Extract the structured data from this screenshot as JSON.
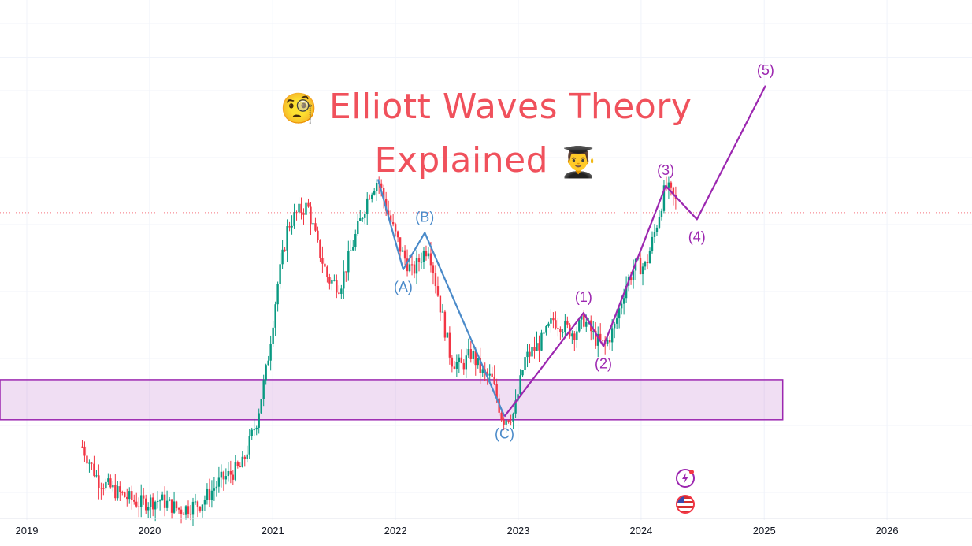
{
  "title": {
    "line1": "Elliott Waves Theory",
    "line2": "Explained",
    "icon1": "monocle-face-icon",
    "icon2": "graduate-icon"
  },
  "colors": {
    "up_candle": "#089981",
    "down_candle": "#f23645",
    "impulse_wave": "#9c27b0",
    "corrective_wave": "#4a8ac9",
    "zone_fill": "rgba(186, 104, 200, 0.22)",
    "zone_border": "#9c27b0",
    "title": "#f0515c",
    "price_line": "#f23645"
  },
  "chart_data": {
    "type": "candlestick",
    "x_axis": {
      "ticks": [
        "2019",
        "2020",
        "2021",
        "2022",
        "2023",
        "2024",
        "2025",
        "2026"
      ]
    },
    "grid": true,
    "series_close": [
      [
        "2019-06-15",
        0.22
      ],
      [
        "2019-08-01",
        0.12
      ],
      [
        "2019-10-01",
        0.08
      ],
      [
        "2019-12-01",
        0.05
      ],
      [
        "2020-02-01",
        0.06
      ],
      [
        "2020-04-01",
        0.03
      ],
      [
        "2020-06-01",
        0.05
      ],
      [
        "2020-08-01",
        0.12
      ],
      [
        "2020-10-01",
        0.16
      ],
      [
        "2020-11-15",
        0.3
      ],
      [
        "2020-12-15",
        0.46
      ],
      [
        "2021-01-15",
        0.7
      ],
      [
        "2021-02-15",
        0.88
      ],
      [
        "2021-03-15",
        0.92
      ],
      [
        "2021-04-15",
        0.94
      ],
      [
        "2021-05-15",
        0.82
      ],
      [
        "2021-06-15",
        0.72
      ],
      [
        "2021-07-20",
        0.7
      ],
      [
        "2021-09-01",
        0.84
      ],
      [
        "2021-10-15",
        0.98
      ],
      [
        "2021-11-10",
        1.02
      ],
      [
        "2021-12-15",
        0.9
      ],
      [
        "2022-01-20",
        0.8
      ],
      [
        "2022-02-20",
        0.74
      ],
      [
        "2022-03-25",
        0.8
      ],
      [
        "2022-04-10",
        0.82
      ],
      [
        "2022-05-10",
        0.66
      ],
      [
        "2022-06-15",
        0.48
      ],
      [
        "2022-07-15",
        0.46
      ],
      [
        "2022-08-15",
        0.5
      ],
      [
        "2022-09-15",
        0.44
      ],
      [
        "2022-10-15",
        0.42
      ],
      [
        "2022-11-15",
        0.3
      ],
      [
        "2022-12-20",
        0.32
      ],
      [
        "2023-01-20",
        0.48
      ],
      [
        "2023-03-15",
        0.54
      ],
      [
        "2023-04-15",
        0.6
      ],
      [
        "2023-05-15",
        0.58
      ],
      [
        "2023-06-15",
        0.56
      ],
      [
        "2023-07-15",
        0.6
      ],
      [
        "2023-08-20",
        0.54
      ],
      [
        "2023-09-15",
        0.52
      ],
      [
        "2023-10-15",
        0.58
      ],
      [
        "2023-11-15",
        0.7
      ],
      [
        "2023-12-15",
        0.76
      ],
      [
        "2024-01-15",
        0.76
      ],
      [
        "2024-02-15",
        0.88
      ],
      [
        "2024-03-14",
        1.0
      ],
      [
        "2024-04-15",
        0.95
      ]
    ],
    "impulse_wave": [
      {
        "date": "2022-11-21",
        "value": 0.31,
        "label": ""
      },
      {
        "date": "2023-07-14",
        "value": 0.62,
        "label": "(1)"
      },
      {
        "date": "2023-09-11",
        "value": 0.52,
        "label": "(2)"
      },
      {
        "date": "2024-03-14",
        "value": 1.0,
        "label": "(3)"
      },
      {
        "date": "2024-06-15",
        "value": 0.9,
        "label": "(4)"
      },
      {
        "date": "2025-01-05",
        "value": 1.3,
        "label": "(5)"
      }
    ],
    "corrective_wave": [
      {
        "date": "2021-11-10",
        "value": 1.02,
        "label": ""
      },
      {
        "date": "2022-01-24",
        "value": 0.75,
        "label": "(A)"
      },
      {
        "date": "2022-03-29",
        "value": 0.86,
        "label": "(B)"
      },
      {
        "date": "2022-11-21",
        "value": 0.31,
        "label": "(C)"
      }
    ],
    "support_zone": {
      "from_date": "2018-06-01",
      "to_date": "2025-02-25",
      "low": 0.3,
      "high": 0.42
    },
    "current_price": 0.92
  },
  "badges": [
    "flash-icon",
    "us-flag-icon"
  ]
}
